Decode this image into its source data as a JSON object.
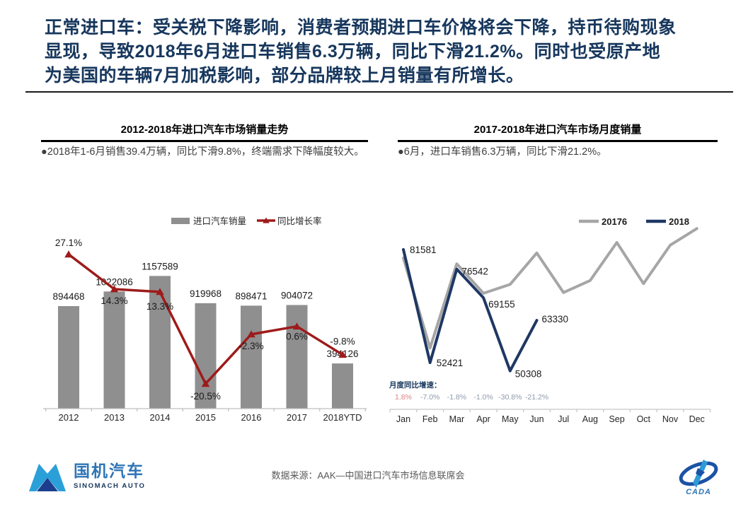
{
  "header": {
    "title_lines": [
      "正常进口车：受关税下降影响，消费者预期进口车价格将会下降，持币待购现象",
      "显现，导致2018年6月进口车销售6.3万辆，同比下滑21.2%。同时也受原产地",
      "为美国的车辆7月加税影响，部分品牌较上月销量有所增长。"
    ]
  },
  "sections": {
    "left": {
      "header": "2012-2018年进口汽车市场销量走势",
      "bullet": "●2018年1-6月销售39.4万辆，同比下滑9.8%，终端需求下降幅度较大。"
    },
    "right": {
      "header": "2017-2018年进口汽车市场月度销量",
      "bullet": "●6月，进口车销售6.3万辆，同比下滑21.2%。"
    }
  },
  "chart_data": [
    {
      "type": "bar",
      "title": "2012-2018年进口汽车市场销量走势",
      "categories": [
        "2012",
        "2013",
        "2014",
        "2015",
        "2016",
        "2017",
        "2018YTD"
      ],
      "series": [
        {
          "name": "进口汽车销量",
          "type": "bar",
          "color": "#8F8F8F",
          "values": [
            894468,
            1022086,
            1157589,
            919968,
            898471,
            904072,
            394126
          ]
        },
        {
          "name": "同比增长率",
          "type": "line",
          "color": "#9E1B1B",
          "values_pct": [
            27.1,
            14.3,
            13.3,
            -20.5,
            -2.3,
            0.6,
            -9.8
          ],
          "labels": [
            "27.1%",
            "14.3%",
            "13.3%",
            "-20.5%",
            "-2.3%",
            "0.6%",
            "-9.8%"
          ]
        }
      ],
      "xlabel": "",
      "ylabel": "",
      "grid": false,
      "legend_position": "top"
    },
    {
      "type": "line",
      "title": "2017-2018年进口汽车市场月度销量",
      "x": [
        "Jan",
        "Feb",
        "Mar",
        "Apr",
        "May",
        "Jun",
        "Jul",
        "Aug",
        "Sep",
        "Oct",
        "Nov",
        "Dec"
      ],
      "series": [
        {
          "name": "20176",
          "color": "#A6A6A6",
          "values": [
            79400,
            56200,
            77900,
            70300,
            72600,
            80700,
            70500,
            73600,
            83400,
            72800,
            82700,
            87000
          ],
          "values_note": "2017 line unlabeled - estimated from plot"
        },
        {
          "name": "2018",
          "color": "#1F3864",
          "values": [
            81581,
            52421,
            76542,
            69155,
            50308,
            63330
          ],
          "labels": [
            "81581",
            "52421",
            "76542",
            "69155",
            "50308",
            "63330"
          ]
        }
      ],
      "growth": {
        "label": "月度同比增速：",
        "values": [
          "1.8%",
          "-7.0%",
          "-1.8%",
          "-1.0%",
          "-30.8%",
          "-21.2%"
        ],
        "first_color": "#E08181",
        "rest_color": "#8E99AB"
      },
      "xlabel": "",
      "ylabel": "",
      "grid": false,
      "legend_position": "top-right",
      "ylim_approx": [
        45000,
        90000
      ]
    }
  ],
  "footer": {
    "source": "数据来源：AAK—中国进口汽车市场信息联席会",
    "sinomach_cn": "国机汽车",
    "sinomach_en": "SINOMACH AUTO",
    "cada_label": "CADA"
  },
  "colors": {
    "title_navy": "#17375D",
    "bar_gray": "#8F8F8F",
    "yoy_red": "#9E1B1B",
    "line_2018_navy": "#1F3864",
    "line_2017_gray": "#A6A6A6",
    "axis_gray": "#C6C6C6",
    "logo_blue": "#2E75B6"
  }
}
